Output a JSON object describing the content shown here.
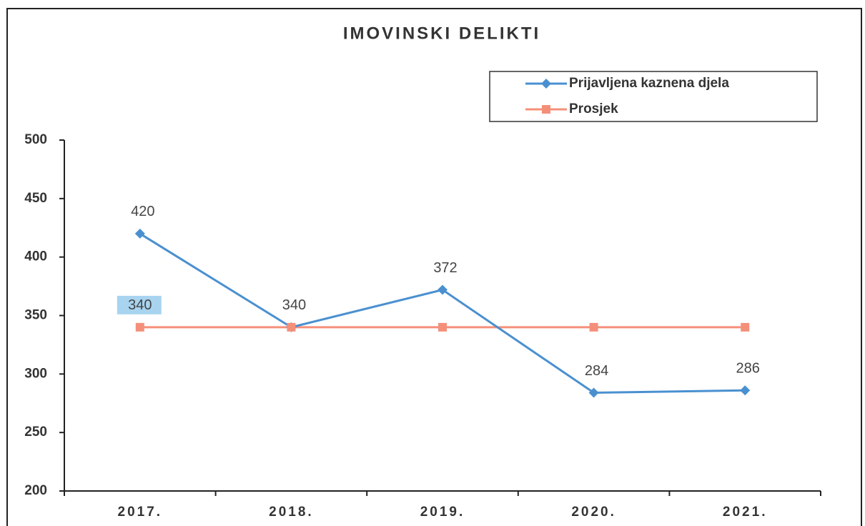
{
  "chart_data": {
    "type": "line",
    "title": "IMOVINSKI DELIKTI",
    "categories": [
      "2017.",
      "2018.",
      "2019.",
      "2020.",
      "2021."
    ],
    "series": [
      {
        "name": "Prijavljena kaznena djela",
        "color": "#4a90d0",
        "marker": "diamond",
        "values": [
          420,
          340,
          372,
          284,
          286
        ]
      },
      {
        "name": "Prosjek",
        "color": "#f4907a",
        "marker": "square",
        "values": [
          340,
          340,
          340,
          340,
          340
        ],
        "value_labels": [
          "340",
          null,
          null,
          null,
          null
        ]
      }
    ],
    "ylim": [
      200,
      500
    ],
    "yticks": [
      200,
      250,
      300,
      350,
      400,
      450,
      500
    ],
    "grid": false,
    "legend": "top-right"
  }
}
